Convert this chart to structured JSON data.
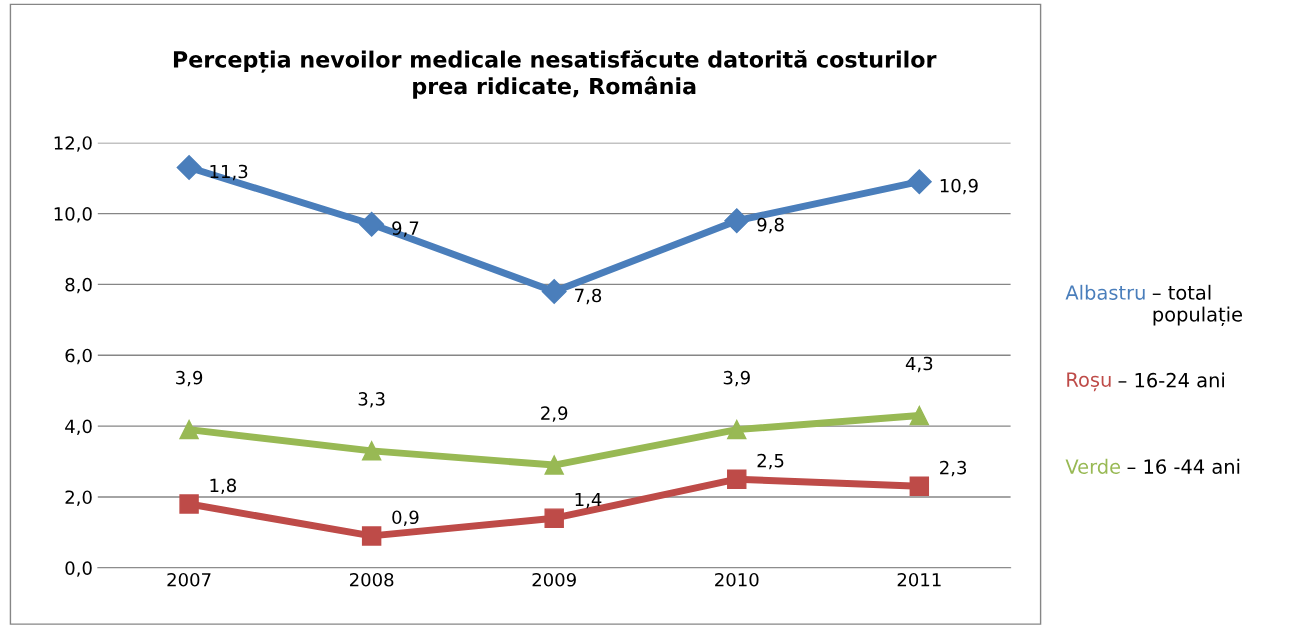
{
  "chart_data": {
    "type": "line",
    "title": "Percepția nevoilor medicale nesatisfăcute datorită costurilor\nprea ridicate, România",
    "categories": [
      "2007",
      "2008",
      "2009",
      "2010",
      "2011"
    ],
    "series": [
      {
        "name": "Albastru – total populație",
        "color": "#4a7ebb",
        "marker": "diamond",
        "values": [
          11.3,
          9.7,
          7.8,
          9.8,
          10.9
        ],
        "value_labels": [
          "11,3",
          "9,7",
          "7,8",
          "9,8",
          "10,9"
        ]
      },
      {
        "name": "Roșu – 16-24 ani",
        "color": "#be4b48",
        "marker": "square",
        "values": [
          1.8,
          0.9,
          1.4,
          2.5,
          2.3
        ],
        "value_labels": [
          "1,8",
          "0,9",
          "1,4",
          "2,5",
          "2,3"
        ]
      },
      {
        "name": "Verde – 16 -44 ani",
        "color": "#98b954",
        "marker": "triangle",
        "values": [
          3.9,
          3.3,
          2.9,
          3.9,
          4.3
        ],
        "value_labels": [
          "3,9",
          "3,3",
          "2,9",
          "3,9",
          "4,3"
        ]
      }
    ],
    "ylim": [
      0,
      12
    ],
    "yticks": [
      {
        "value": 0,
        "label": "0,0"
      },
      {
        "value": 2,
        "label": "2,0"
      },
      {
        "value": 4,
        "label": "4,0"
      },
      {
        "value": 6,
        "label": "6,0"
      },
      {
        "value": 8,
        "label": "8,0"
      },
      {
        "value": 10,
        "label": "10,0"
      },
      {
        "value": 12,
        "label": "12,0"
      }
    ],
    "grid": "y",
    "legend": "right",
    "line_style": "solid"
  }
}
